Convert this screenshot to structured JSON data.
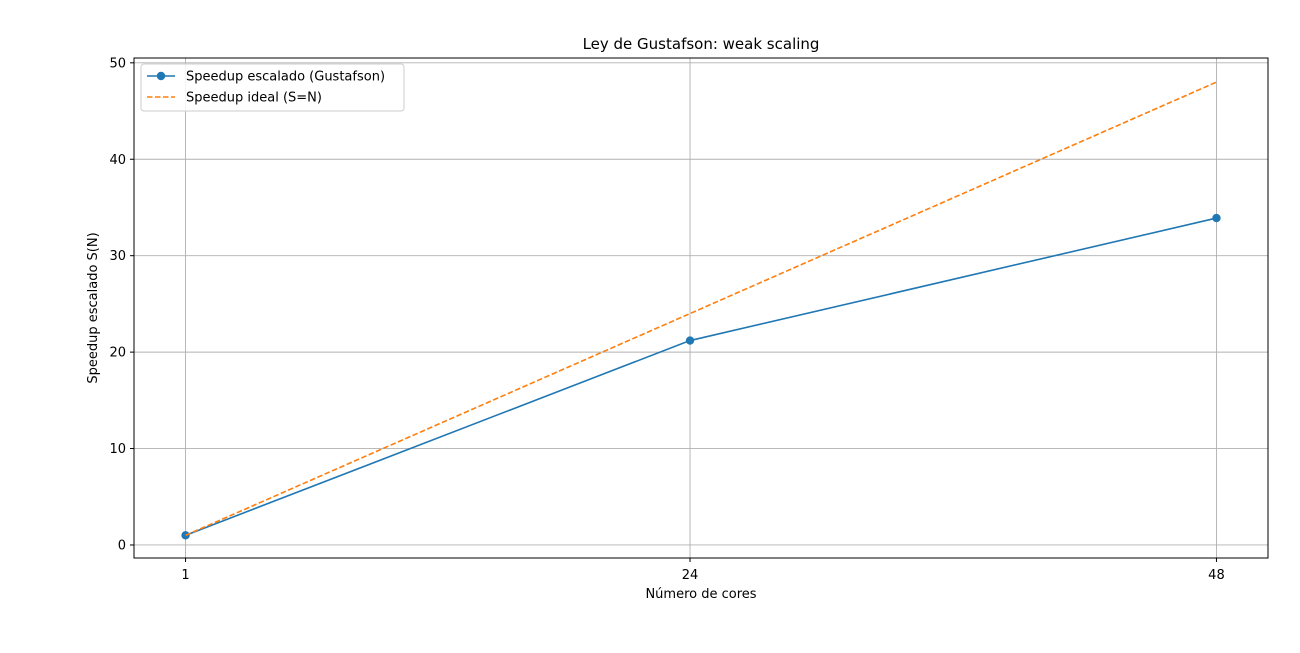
{
  "chart_data": {
    "type": "line",
    "title": "Ley de Gustafson: weak scaling",
    "xlabel": "Número de cores",
    "ylabel": "Speedup escalado S(N)",
    "x": [
      1,
      24,
      48
    ],
    "xticks": [
      1,
      24,
      48
    ],
    "yticks": [
      0,
      10,
      20,
      30,
      40,
      50
    ],
    "xlim": [
      -1.35,
      50.35
    ],
    "ylim": [
      -1.35,
      50.5
    ],
    "grid": true,
    "legend_position": "upper-left",
    "series": [
      {
        "name": "Speedup escalado (Gustafson)",
        "values": [
          1,
          21.2,
          33.9
        ],
        "color": "#1f77b4",
        "style": "solid",
        "marker": "circle"
      },
      {
        "name": "Speedup ideal (S=N)",
        "values": [
          1,
          24,
          48
        ],
        "color": "#ff7f0e",
        "style": "dashed",
        "marker": "none"
      }
    ]
  }
}
